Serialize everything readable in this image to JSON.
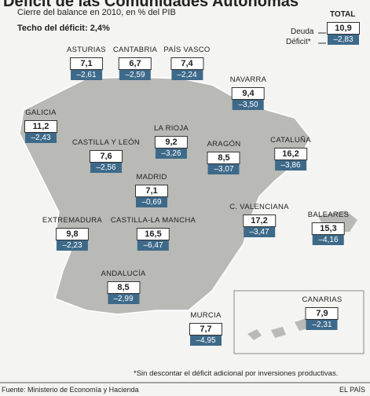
{
  "header": {
    "title": "Déficit de las Comunidades Autónomas",
    "subtitle": "Cierre del balance en 2010, en % del PIB",
    "ceiling": "Techo del déficit: 2,4%"
  },
  "total": {
    "label": "TOTAL",
    "debt_label": "Deuda",
    "deficit_label": "Déficit*",
    "debt": "10,9",
    "deficit": "–2,83"
  },
  "regions": [
    {
      "name": "Asturias",
      "debt": "7,1",
      "deficit": "–2,61"
    },
    {
      "name": "Cantabria",
      "debt": "6,7",
      "deficit": "–2,59"
    },
    {
      "name": "País Vasco",
      "debt": "7,4",
      "deficit": "–2,24"
    },
    {
      "name": "Navarra",
      "debt": "9,4",
      "deficit": "–3,50"
    },
    {
      "name": "Galicia",
      "debt": "11,2",
      "deficit": "–2,43"
    },
    {
      "name": "La Rioja",
      "debt": "9,2",
      "deficit": "–3,26"
    },
    {
      "name": "Castilla y León",
      "debt": "7,6",
      "deficit": "–2,56"
    },
    {
      "name": "Aragón",
      "debt": "8,5",
      "deficit": "–3,07"
    },
    {
      "name": "Cataluña",
      "debt": "16,2",
      "deficit": "–3,86"
    },
    {
      "name": "Madrid",
      "debt": "7,1",
      "deficit": "–0,69"
    },
    {
      "name": "C. Valenciana",
      "debt": "17,2",
      "deficit": "–3,47"
    },
    {
      "name": "Extremadura",
      "debt": "9,8",
      "deficit": "–2,23"
    },
    {
      "name": "Castilla-La Mancha",
      "debt": "16,5",
      "deficit": "–6,47"
    },
    {
      "name": "Baleares",
      "debt": "15,3",
      "deficit": "–4,16"
    },
    {
      "name": "Andalucía",
      "debt": "8,5",
      "deficit": "–2,99"
    },
    {
      "name": "Murcia",
      "debt": "7,7",
      "deficit": "–4,95"
    },
    {
      "name": "Canarias",
      "debt": "7,9",
      "deficit": "–2,31"
    }
  ],
  "footer": {
    "note": "*Sin descontar el déficit adicional por inversiones productivas.",
    "source": "Fuente: Ministerio de Economía y Hacienda",
    "publisher": "EL PAÍS"
  }
}
